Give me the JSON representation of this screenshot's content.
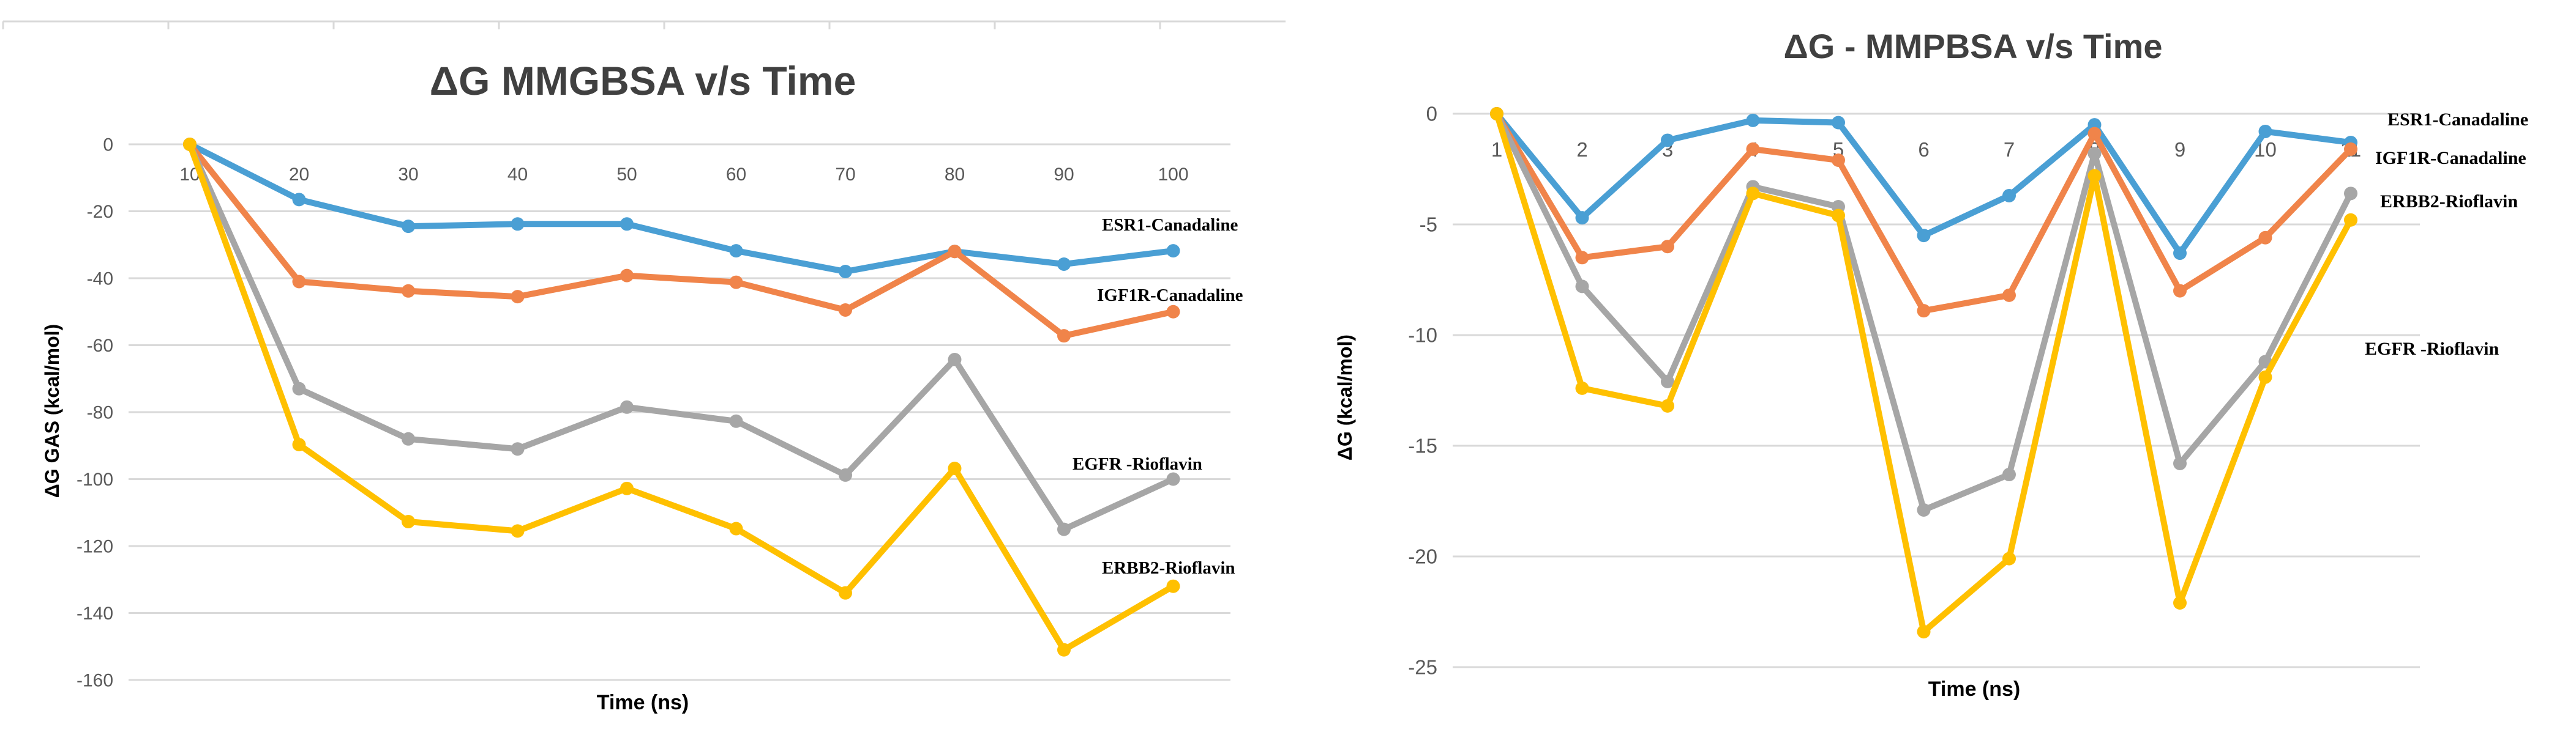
{
  "chart_data": [
    {
      "type": "line",
      "title": "ΔG MMGBSA v/s Time",
      "xlabel": "Time (ns)",
      "ylabel": "ΔG GAS (kcal/mol)",
      "categories": [
        "10",
        "20",
        "30",
        "40",
        "50",
        "60",
        "70",
        "80",
        "90",
        "100"
      ],
      "y_ticks": [
        "0",
        "-20",
        "-40",
        "-60",
        "-80",
        "-100",
        "-120",
        "-140",
        "-160"
      ],
      "ylim": [
        -160,
        0
      ],
      "grid": true,
      "legend": "none",
      "series": [
        {
          "name": "ESR1-Canadaline",
          "color": "#4a9fd4",
          "values": [
            0,
            -16.5,
            -24.5,
            -23.8,
            -23.8,
            -31.8,
            -38,
            -32,
            -35.8,
            -31.8
          ]
        },
        {
          "name": "IGF1R-Canadaline",
          "color": "#f0844a",
          "values": [
            0,
            -41,
            -43.8,
            -45.5,
            -39.2,
            -41.2,
            -49.5,
            -32,
            -57.2,
            -50
          ]
        },
        {
          "name": "EGFR -Rioflavin",
          "color": "#a6a6a6",
          "values": [
            0,
            -73,
            -88,
            -91,
            -78.5,
            -82.7,
            -98.8,
            -64.3,
            -115,
            -100
          ]
        },
        {
          "name": "ERBB2-Rioflavin",
          "color": "#ffc000",
          "values": [
            0,
            -89.7,
            -112.7,
            -115.5,
            -102.8,
            -114.8,
            -134,
            -96.8,
            -151,
            -132
          ]
        }
      ]
    },
    {
      "type": "line",
      "title": "ΔG - MMPBSA v/s Time",
      "xlabel": "Time (ns)",
      "ylabel": "ΔG (kcal/mol)",
      "categories": [
        "1",
        "2",
        "3",
        "4",
        "5",
        "6",
        "7",
        "8",
        "9",
        "10",
        "11"
      ],
      "y_ticks": [
        "0",
        "-5",
        "-10",
        "-15",
        "-20",
        "-25"
      ],
      "ylim": [
        -25,
        0
      ],
      "grid": true,
      "legend": "none",
      "series": [
        {
          "name": "ESR1-Canadaline",
          "color": "#4a9fd4",
          "values": [
            0,
            -4.7,
            -1.2,
            -0.3,
            -0.4,
            -5.5,
            -3.7,
            -0.5,
            -6.3,
            -0.8,
            -1.3
          ]
        },
        {
          "name": "IGF1R-Canadaline",
          "color": "#f0844a",
          "values": [
            0,
            -6.5,
            -6,
            -1.6,
            -2.1,
            -8.9,
            -8.2,
            -0.9,
            -8,
            -5.6,
            -1.6
          ]
        },
        {
          "name": "ERBB2-Rioflavin",
          "color": "#a6a6a6",
          "values": [
            0,
            -7.8,
            -12.1,
            -3.3,
            -4.2,
            -17.9,
            -16.3,
            -1.8,
            -15.8,
            -11.2,
            -3.6
          ]
        },
        {
          "name": "EGFR -Rioflavin",
          "color": "#ffc000",
          "values": [
            0,
            -12.4,
            -13.2,
            -3.6,
            -4.6,
            -23.4,
            -20.1,
            -2.8,
            -22.1,
            -11.9,
            -4.8
          ]
        }
      ]
    }
  ]
}
